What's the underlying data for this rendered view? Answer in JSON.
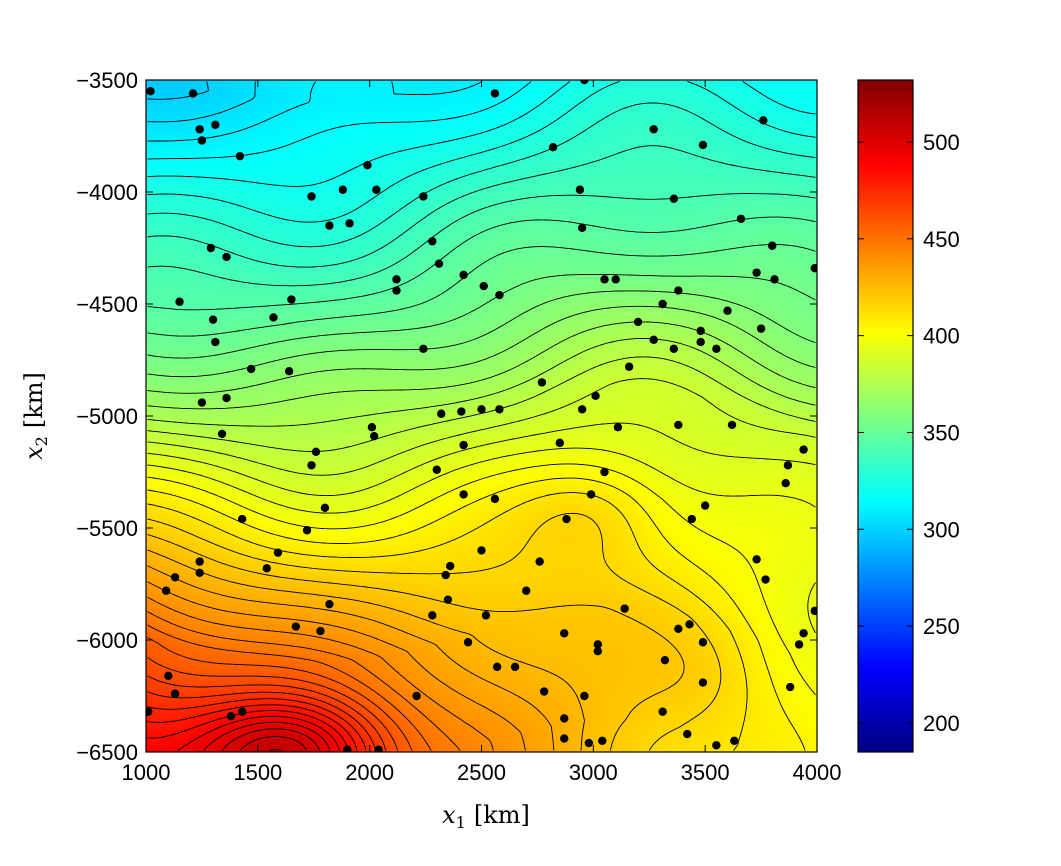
{
  "chart_data": {
    "type": "heatmap",
    "subtype": "filled-contour",
    "title": "",
    "xlabel": "x_1 [km]",
    "ylabel": "x_2 [km]",
    "xlabel_main": "x",
    "xlabel_sub": "1",
    "xlabel_unit": "[km]",
    "ylabel_main": "x",
    "ylabel_sub": "2",
    "ylabel_unit": "[km]",
    "xlim": [
      1000,
      4000
    ],
    "ylim": [
      -6500,
      -3500
    ],
    "xticks": [
      1000,
      1500,
      2000,
      2500,
      3000,
      3500,
      4000
    ],
    "xtick_labels": [
      "1000",
      "1500",
      "2000",
      "2500",
      "3000",
      "3500",
      "4000"
    ],
    "yticks": [
      -3500,
      -4000,
      -4500,
      -5000,
      -5500,
      -6000,
      -6500
    ],
    "ytick_labels": [
      "−3500",
      "−4000",
      "−4500",
      "−5000",
      "−5500",
      "−6000",
      "−6500"
    ],
    "colorbar": {
      "colormap": "jet",
      "range": [
        185,
        532
      ],
      "ticks": [
        200,
        250,
        300,
        350,
        400,
        450,
        500
      ],
      "tick_labels": [
        "200",
        "250",
        "300",
        "350",
        "400",
        "450",
        "500"
      ]
    },
    "field": {
      "description_units": "value",
      "west_y": [
        -3500,
        -4000,
        -4500,
        -5000,
        -5500,
        -6000,
        -6500
      ],
      "west_values": [
        300,
        322,
        345,
        375,
        415,
        460,
        480
      ],
      "east_values": [
        322,
        340,
        360,
        385,
        395,
        400,
        400
      ],
      "hotspot": {
        "x": 1650,
        "y": -6500,
        "value": 525
      },
      "local_high": {
        "x": 3000,
        "y": -5430,
        "value": 405
      }
    },
    "grid": false,
    "legend": "none",
    "stations": [
      [
        1020,
        -3550
      ],
      [
        1210,
        -3560
      ],
      [
        1240,
        -3720
      ],
      [
        1250,
        -3770
      ],
      [
        1310,
        -3700
      ],
      [
        1420,
        -3840
      ],
      [
        1290,
        -4250
      ],
      [
        1360,
        -4290
      ],
      [
        1150,
        -4490
      ],
      [
        1300,
        -4570
      ],
      [
        1310,
        -4670
      ],
      [
        1250,
        -4940
      ],
      [
        1360,
        -4920
      ],
      [
        1340,
        -5080
      ],
      [
        1470,
        -4790
      ],
      [
        1570,
        -4560
      ],
      [
        1650,
        -4480
      ],
      [
        1640,
        -4800
      ],
      [
        1740,
        -4020
      ],
      [
        1820,
        -4150
      ],
      [
        1880,
        -3990
      ],
      [
        1910,
        -4140
      ],
      [
        1990,
        -3880
      ],
      [
        2030,
        -3990
      ],
      [
        2120,
        -4390
      ],
      [
        2120,
        -4440
      ],
      [
        2240,
        -4020
      ],
      [
        2280,
        -4220
      ],
      [
        2310,
        -4320
      ],
      [
        2240,
        -4700
      ],
      [
        2420,
        -4370
      ],
      [
        2510,
        -4420
      ],
      [
        2580,
        -4460
      ],
      [
        2560,
        -3560
      ],
      [
        2820,
        -3800
      ],
      [
        2960,
        -3500
      ],
      [
        2940,
        -3990
      ],
      [
        2950,
        -4160
      ],
      [
        2770,
        -4850
      ],
      [
        2320,
        -4990
      ],
      [
        2410,
        -4980
      ],
      [
        2500,
        -4970
      ],
      [
        2580,
        -4970
      ],
      [
        2010,
        -5050
      ],
      [
        2020,
        -5090
      ],
      [
        1760,
        -5160
      ],
      [
        1740,
        -5220
      ],
      [
        1800,
        -5410
      ],
      [
        1720,
        -5510
      ],
      [
        1430,
        -5460
      ],
      [
        1540,
        -5680
      ],
      [
        1590,
        -5610
      ],
      [
        1240,
        -5650
      ],
      [
        1240,
        -5700
      ],
      [
        1130,
        -5720
      ],
      [
        1090,
        -5780
      ],
      [
        1820,
        -5840
      ],
      [
        1670,
        -5940
      ],
      [
        1780,
        -5960
      ],
      [
        2280,
        -5890
      ],
      [
        2360,
        -5670
      ],
      [
        2340,
        -5710
      ],
      [
        2350,
        -5820
      ],
      [
        2420,
        -5130
      ],
      [
        2420,
        -5350
      ],
      [
        2300,
        -5240
      ],
      [
        2560,
        -5370
      ],
      [
        2500,
        -5600
      ],
      [
        2440,
        -6010
      ],
      [
        2520,
        -5890
      ],
      [
        2570,
        -6120
      ],
      [
        2650,
        -6120
      ],
      [
        2700,
        -5780
      ],
      [
        2760,
        -5650
      ],
      [
        2880,
        -5460
      ],
      [
        2850,
        -5120
      ],
      [
        2990,
        -5350
      ],
      [
        3050,
        -5250
      ],
      [
        2950,
        -4970
      ],
      [
        3010,
        -4910
      ],
      [
        3110,
        -5050
      ],
      [
        3050,
        -4390
      ],
      [
        3100,
        -4390
      ],
      [
        3200,
        -4580
      ],
      [
        3270,
        -4660
      ],
      [
        3310,
        -4500
      ],
      [
        3360,
        -4030
      ],
      [
        3270,
        -3720
      ],
      [
        3490,
        -3790
      ],
      [
        3600,
        -4530
      ],
      [
        3160,
        -4780
      ],
      [
        3360,
        -4700
      ],
      [
        3380,
        -4440
      ],
      [
        3480,
        -4620
      ],
      [
        3480,
        -4670
      ],
      [
        3550,
        -4700
      ],
      [
        3660,
        -4120
      ],
      [
        3730,
        -4360
      ],
      [
        3800,
        -4240
      ],
      [
        3810,
        -4390
      ],
      [
        3760,
        -3680
      ],
      [
        3750,
        -4610
      ],
      [
        3990,
        -4340
      ],
      [
        3380,
        -5040
      ],
      [
        3620,
        -5040
      ],
      [
        3870,
        -5220
      ],
      [
        3860,
        -5300
      ],
      [
        3940,
        -5150
      ],
      [
        3440,
        -5460
      ],
      [
        3500,
        -5400
      ],
      [
        3730,
        -5640
      ],
      [
        3770,
        -5730
      ],
      [
        3990,
        -5870
      ],
      [
        3940,
        -5970
      ],
      [
        3920,
        -6020
      ],
      [
        3880,
        -6210
      ],
      [
        3380,
        -5950
      ],
      [
        3430,
        -5930
      ],
      [
        3490,
        -6010
      ],
      [
        3490,
        -6190
      ],
      [
        3320,
        -6090
      ],
      [
        3310,
        -6320
      ],
      [
        3420,
        -6420
      ],
      [
        3550,
        -6470
      ],
      [
        3630,
        -6450
      ],
      [
        3140,
        -5860
      ],
      [
        3020,
        -6020
      ],
      [
        3020,
        -6050
      ],
      [
        2870,
        -5970
      ],
      [
        2780,
        -6230
      ],
      [
        2870,
        -6350
      ],
      [
        2870,
        -6440
      ],
      [
        2960,
        -6250
      ],
      [
        2980,
        -6460
      ],
      [
        3040,
        -6450
      ],
      [
        2210,
        -6250
      ],
      [
        1900,
        -6490
      ],
      [
        2040,
        -6490
      ],
      [
        1010,
        -6320
      ],
      [
        1100,
        -6160
      ],
      [
        1130,
        -6240
      ],
      [
        1380,
        -6340
      ],
      [
        1430,
        -6320
      ]
    ]
  }
}
